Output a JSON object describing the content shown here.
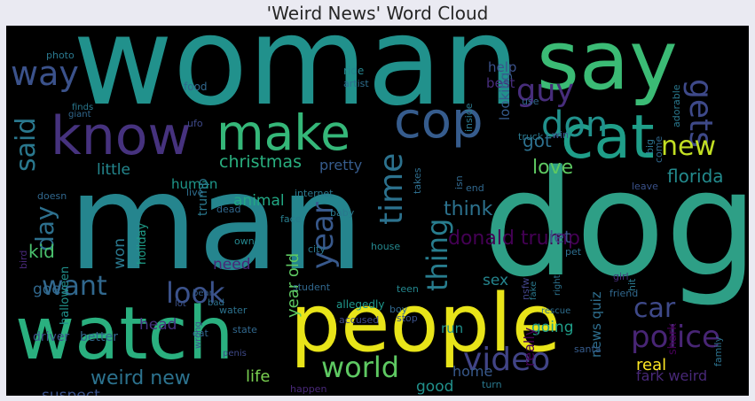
{
  "title": "'Weird News' Word Cloud",
  "palette": {
    "background": "#000000",
    "figure_background": "#eaeaf2",
    "title_color": "#262626"
  },
  "words": [
    {
      "text": "woman",
      "color": "#21918c"
    },
    {
      "text": "say",
      "color": "#3bbb75"
    },
    {
      "text": "know",
      "color": "#46327e"
    },
    {
      "text": "make",
      "color": "#35b779"
    },
    {
      "text": "cop",
      "color": "#365c8d"
    },
    {
      "text": "cat",
      "color": "#1f9e89"
    },
    {
      "text": "man",
      "color": "#25858e"
    },
    {
      "text": "dog",
      "color": "#2e9f86"
    },
    {
      "text": "watch",
      "color": "#2ab07f"
    },
    {
      "text": "people",
      "color": "#e8e419"
    },
    {
      "text": "time",
      "color": "#2c728e"
    },
    {
      "text": "don",
      "color": "#21918c"
    },
    {
      "text": "gets",
      "color": "#3e4989"
    },
    {
      "text": "guy",
      "color": "#472d7b"
    },
    {
      "text": "said",
      "color": "#2a788e"
    },
    {
      "text": "way",
      "color": "#3b528b"
    },
    {
      "text": "new",
      "color": "#c2df23"
    },
    {
      "text": "police",
      "color": "#482575"
    },
    {
      "text": "video",
      "color": "#414487"
    },
    {
      "text": "world",
      "color": "#5ec962"
    },
    {
      "text": "year",
      "color": "#38598c"
    },
    {
      "text": "thing",
      "color": "#287d8e"
    },
    {
      "text": "look",
      "color": "#3b528b"
    },
    {
      "text": "want",
      "color": "#31688e"
    },
    {
      "text": "day",
      "color": "#2d708e"
    },
    {
      "text": "car",
      "color": "#3e4989"
    },
    {
      "text": "christmas",
      "color": "#29af7f"
    },
    {
      "text": "little",
      "color": "#24878e"
    },
    {
      "text": "human",
      "color": "#1f988b"
    },
    {
      "text": "trump",
      "color": "#2a788e"
    },
    {
      "text": "animal",
      "color": "#22a884"
    },
    {
      "text": "pretty",
      "color": "#365c8d"
    },
    {
      "text": "donald trump",
      "color": "#440154"
    },
    {
      "text": "florida",
      "color": "#238a8d"
    },
    {
      "text": "love",
      "color": "#5ec962"
    },
    {
      "text": "think",
      "color": "#2c728e"
    },
    {
      "text": "got",
      "color": "#2d708e"
    },
    {
      "text": "let",
      "color": "#3b528b"
    },
    {
      "text": "help",
      "color": "#3b528b"
    },
    {
      "text": "best",
      "color": "#472d7b"
    },
    {
      "text": "year old",
      "color": "#5ec962"
    },
    {
      "text": "kid",
      "color": "#4ac16d"
    },
    {
      "text": "goes",
      "color": "#31688e"
    },
    {
      "text": "won",
      "color": "#2a788e"
    },
    {
      "text": "halloween",
      "color": "#21918c"
    },
    {
      "text": "holiday",
      "color": "#1f9e89"
    },
    {
      "text": "weird new",
      "color": "#2c728e"
    },
    {
      "text": "suspect",
      "color": "#3b528b"
    },
    {
      "text": "life",
      "color": "#7ad151"
    },
    {
      "text": "good",
      "color": "#21918c"
    },
    {
      "text": "home",
      "color": "#38598c"
    },
    {
      "text": "fark weird",
      "color": "#482878"
    },
    {
      "text": "real",
      "color": "#fde725"
    },
    {
      "text": "going",
      "color": "#1f9e89"
    },
    {
      "text": "run",
      "color": "#21918c"
    },
    {
      "text": "sex",
      "color": "#25858e"
    },
    {
      "text": "need",
      "color": "#482878"
    },
    {
      "text": "head",
      "color": "#46327e"
    },
    {
      "text": "really",
      "color": "#440154"
    },
    {
      "text": "news quiz",
      "color": "#2e6e8e"
    },
    {
      "text": "shark",
      "color": "#440154"
    },
    {
      "text": "driver",
      "color": "#3b528b"
    },
    {
      "text": "better",
      "color": "#31688e"
    },
    {
      "text": "photo",
      "color": "#2a788e"
    },
    {
      "text": "finds",
      "color": "#2a788e"
    },
    {
      "text": "giant",
      "color": "#31688e"
    },
    {
      "text": "food",
      "color": "#31688e"
    },
    {
      "text": "ride",
      "color": "#25858e"
    },
    {
      "text": "artist",
      "color": "#2e6e8e"
    },
    {
      "text": "ufo",
      "color": "#3e4989"
    },
    {
      "text": "doesn",
      "color": "#31688e"
    },
    {
      "text": "live",
      "color": "#2e6e8e"
    },
    {
      "text": "dead",
      "color": "#31688e"
    },
    {
      "text": "face",
      "color": "#287d8e"
    },
    {
      "text": "internet",
      "color": "#2a788e"
    },
    {
      "text": "baby",
      "color": "#2a788e"
    },
    {
      "text": "house",
      "color": "#24878e"
    },
    {
      "text": "teen",
      "color": "#24878e"
    },
    {
      "text": "boy",
      "color": "#31688e"
    },
    {
      "text": "stop",
      "color": "#3b528b"
    },
    {
      "text": "pet",
      "color": "#2e6e8e"
    },
    {
      "text": "owner",
      "color": "#24878e"
    },
    {
      "text": "city",
      "color": "#2a788e"
    },
    {
      "text": "bear",
      "color": "#365c8d"
    },
    {
      "text": "student",
      "color": "#31688e"
    },
    {
      "text": "accused",
      "color": "#3e4989"
    },
    {
      "text": "allegedly",
      "color": "#1f988b"
    },
    {
      "text": "state",
      "color": "#31688e"
    },
    {
      "text": "water",
      "color": "#2c728e"
    },
    {
      "text": "bad",
      "color": "#2c728e"
    },
    {
      "text": "lot",
      "color": "#3b528b"
    },
    {
      "text": "eat",
      "color": "#31688e"
    },
    {
      "text": "wrong",
      "color": "#3b528b"
    },
    {
      "text": "penis",
      "color": "#3e4989"
    },
    {
      "text": "happen",
      "color": "#482878"
    },
    {
      "text": "turn",
      "color": "#2a788e"
    },
    {
      "text": "nsfw",
      "color": "#414487"
    },
    {
      "text": "fake",
      "color": "#2a788e"
    },
    {
      "text": "friend",
      "color": "#31688e"
    },
    {
      "text": "girl",
      "color": "#472d7b"
    },
    {
      "text": "hit",
      "color": "#2a788e"
    },
    {
      "text": "right",
      "color": "#2c728e"
    },
    {
      "text": "rescue",
      "color": "#2e6e8e"
    },
    {
      "text": "santa",
      "color": "#365c8d"
    },
    {
      "text": "truck",
      "color": "#2a788e"
    },
    {
      "text": "use",
      "color": "#31688e"
    },
    {
      "text": "takes",
      "color": "#2e6e8e"
    },
    {
      "text": "inside",
      "color": "#2a788e"
    },
    {
      "text": "looking",
      "color": "#365c8d"
    },
    {
      "text": "big",
      "color": "#2c728e"
    },
    {
      "text": "come",
      "color": "#31688e"
    },
    {
      "text": "adorable",
      "color": "#2a788e"
    },
    {
      "text": "leave",
      "color": "#3b528b"
    },
    {
      "text": "isn",
      "color": "#31688e"
    },
    {
      "text": "end",
      "color": "#31688e"
    },
    {
      "text": "win",
      "color": "#3b528b"
    },
    {
      "text": "bird",
      "color": "#482878"
    },
    {
      "text": "family",
      "color": "#2c728e"
    },
    {
      "text": "play",
      "color": "#31688e"
    }
  ]
}
